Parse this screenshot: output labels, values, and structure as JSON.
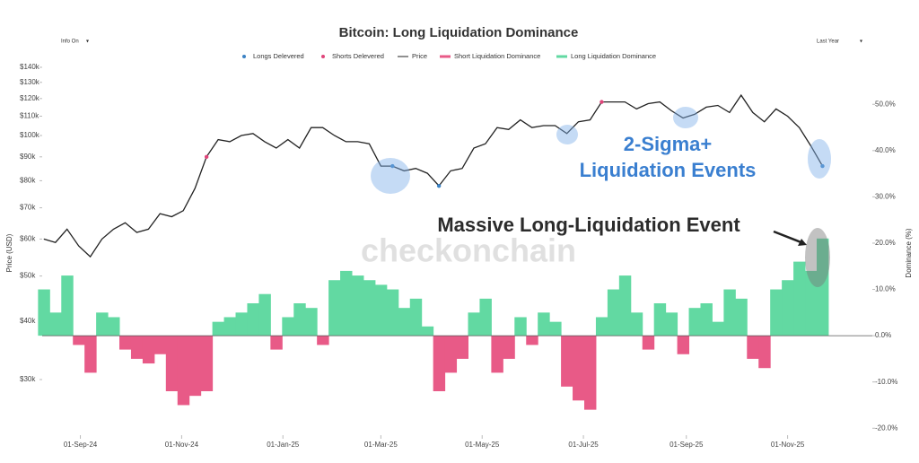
{
  "chart_data": {
    "type": "line-bar",
    "title": "Bitcoin: Long Liquidation Dominance",
    "controls": [
      "Info On",
      "Last Year"
    ],
    "ylabel": "Price (USD)",
    "y2label": "Dominance (%)",
    "watermark": "checkonchain",
    "annotations": [
      "2-Sigma+",
      "Liquidation Events",
      "Massive Long-Liquidation Event"
    ],
    "ylog": true,
    "xlim": [
      "2024-08-09",
      "2025-11-25"
    ],
    "xticks": [
      {
        "value": "2024-09-01",
        "label": "01-Sep-24"
      },
      {
        "value": "2024-11-01",
        "label": "01-Nov-24"
      },
      {
        "value": "2025-01-01",
        "label": "01-Jan-25"
      },
      {
        "value": "2025-03-01",
        "label": "01-Mar-25"
      },
      {
        "value": "2025-05-01",
        "label": "01-May-25"
      },
      {
        "value": "2025-07-01",
        "label": "01-Jul-25"
      },
      {
        "value": "2025-09-01",
        "label": "01-Sep-25"
      },
      {
        "value": "2025-11-01",
        "label": "01-Nov-25"
      }
    ],
    "ylim": [
      22800,
      140000
    ],
    "yticks": [
      {
        "value": 30000,
        "label": "$30k"
      },
      {
        "value": 40000,
        "label": "$40k"
      },
      {
        "value": 50000,
        "label": "$50k"
      },
      {
        "value": 60000,
        "label": "$60k"
      },
      {
        "value": 70000,
        "label": "$70k"
      },
      {
        "value": 80000,
        "label": "$80k"
      },
      {
        "value": 90000,
        "label": "$90k"
      },
      {
        "value": 100000,
        "label": "$100k"
      },
      {
        "value": 110000,
        "label": "$110k"
      },
      {
        "value": 120000,
        "label": "$120k"
      },
      {
        "value": 130000,
        "label": "$130k"
      },
      {
        "value": 140000,
        "label": "$140k"
      }
    ],
    "y2lim": [
      -21.5,
      58
    ],
    "y2ticks": [
      {
        "value": -20,
        "label": "-20.0%"
      },
      {
        "value": -10,
        "label": "-10.0%"
      },
      {
        "value": 0,
        "label": "0.0%"
      },
      {
        "value": 10,
        "label": "10.0%"
      },
      {
        "value": 20,
        "label": "20.0%"
      },
      {
        "value": 30,
        "label": "30.0%"
      },
      {
        "value": 40,
        "label": "40.0%"
      },
      {
        "value": 50,
        "label": "50.0%"
      }
    ],
    "x": [
      "2024-08-10",
      "2024-08-17",
      "2024-08-24",
      "2024-08-31",
      "2024-09-07",
      "2024-09-14",
      "2024-09-21",
      "2024-09-28",
      "2024-10-05",
      "2024-10-12",
      "2024-10-19",
      "2024-10-26",
      "2024-11-02",
      "2024-11-09",
      "2024-11-16",
      "2024-11-23",
      "2024-11-30",
      "2024-12-07",
      "2024-12-14",
      "2024-12-21",
      "2024-12-28",
      "2025-01-04",
      "2025-01-11",
      "2025-01-18",
      "2025-01-25",
      "2025-02-01",
      "2025-02-08",
      "2025-02-15",
      "2025-02-22",
      "2025-03-01",
      "2025-03-08",
      "2025-03-15",
      "2025-03-22",
      "2025-03-29",
      "2025-04-05",
      "2025-04-12",
      "2025-04-19",
      "2025-04-26",
      "2025-05-03",
      "2025-05-10",
      "2025-05-17",
      "2025-05-24",
      "2025-05-31",
      "2025-06-07",
      "2025-06-14",
      "2025-06-21",
      "2025-06-28",
      "2025-07-05",
      "2025-07-12",
      "2025-07-19",
      "2025-07-26",
      "2025-08-02",
      "2025-08-09",
      "2025-08-16",
      "2025-08-23",
      "2025-08-30",
      "2025-09-06",
      "2025-09-13",
      "2025-09-20",
      "2025-09-27",
      "2025-10-04",
      "2025-10-11",
      "2025-10-18",
      "2025-10-25",
      "2025-11-01",
      "2025-11-08",
      "2025-11-15",
      "2025-11-22"
    ],
    "series": [
      {
        "name": "Longs Delevered",
        "color": "#3b82c4",
        "kind": "scatter",
        "x": [
          "2025-03-08",
          "2025-04-05",
          "2025-11-22"
        ],
        "values": [
          86000,
          78000,
          86000
        ]
      },
      {
        "name": "Shorts Delevered",
        "color": "#e0457a",
        "kind": "scatter",
        "x": [
          "2024-11-16",
          "2025-07-12"
        ],
        "values": [
          90000,
          118000
        ]
      },
      {
        "name": "Price",
        "color": "#222222",
        "kind": "line",
        "values": [
          60000,
          59000,
          63000,
          58000,
          55000,
          60000,
          63000,
          65000,
          62000,
          63000,
          68000,
          67000,
          69000,
          77000,
          90000,
          98000,
          97000,
          100000,
          101000,
          97000,
          94000,
          98000,
          94000,
          104000,
          104000,
          100000,
          97000,
          97000,
          96000,
          86000,
          86000,
          84000,
          85000,
          83000,
          78000,
          84000,
          85000,
          94000,
          96000,
          104000,
          103000,
          108000,
          104000,
          105000,
          105000,
          101000,
          107000,
          108000,
          118000,
          118000,
          118000,
          114000,
          117000,
          118000,
          113000,
          109000,
          111000,
          115000,
          116000,
          112000,
          122000,
          112000,
          107000,
          114000,
          110000,
          104000,
          95000,
          86000
        ]
      },
      {
        "name": "Short Liquidation Dominance",
        "color": "#e85a87",
        "kind": "bar",
        "axis": "y2",
        "values": [
          null,
          null,
          null,
          -2,
          -8,
          null,
          null,
          -3,
          -5,
          -6,
          -4,
          -12,
          -15,
          -13,
          -12,
          null,
          null,
          null,
          null,
          null,
          -3,
          null,
          null,
          null,
          -2,
          null,
          null,
          null,
          null,
          null,
          null,
          null,
          null,
          null,
          -12,
          -8,
          -5,
          null,
          null,
          -8,
          -5,
          null,
          -2,
          null,
          null,
          -11,
          -14,
          -16,
          null,
          null,
          null,
          null,
          -3,
          null,
          null,
          -4,
          null,
          null,
          null,
          null,
          null,
          -5,
          -7,
          null,
          null,
          null,
          null,
          null
        ]
      },
      {
        "name": "Long Liquidation Dominance",
        "color": "#62d9a2",
        "kind": "bar",
        "axis": "y2",
        "values": [
          10,
          5,
          13,
          null,
          null,
          5,
          4,
          null,
          null,
          null,
          null,
          null,
          null,
          null,
          null,
          3,
          4,
          5,
          7,
          9,
          null,
          4,
          7,
          6,
          null,
          12,
          14,
          13,
          12,
          11,
          10,
          6,
          8,
          2,
          null,
          null,
          null,
          5,
          8,
          null,
          null,
          4,
          null,
          5,
          3,
          null,
          null,
          null,
          4,
          10,
          13,
          5,
          null,
          7,
          5,
          null,
          6,
          7,
          3,
          10,
          8,
          null,
          null,
          10,
          12,
          16,
          14,
          21
        ]
      }
    ]
  }
}
